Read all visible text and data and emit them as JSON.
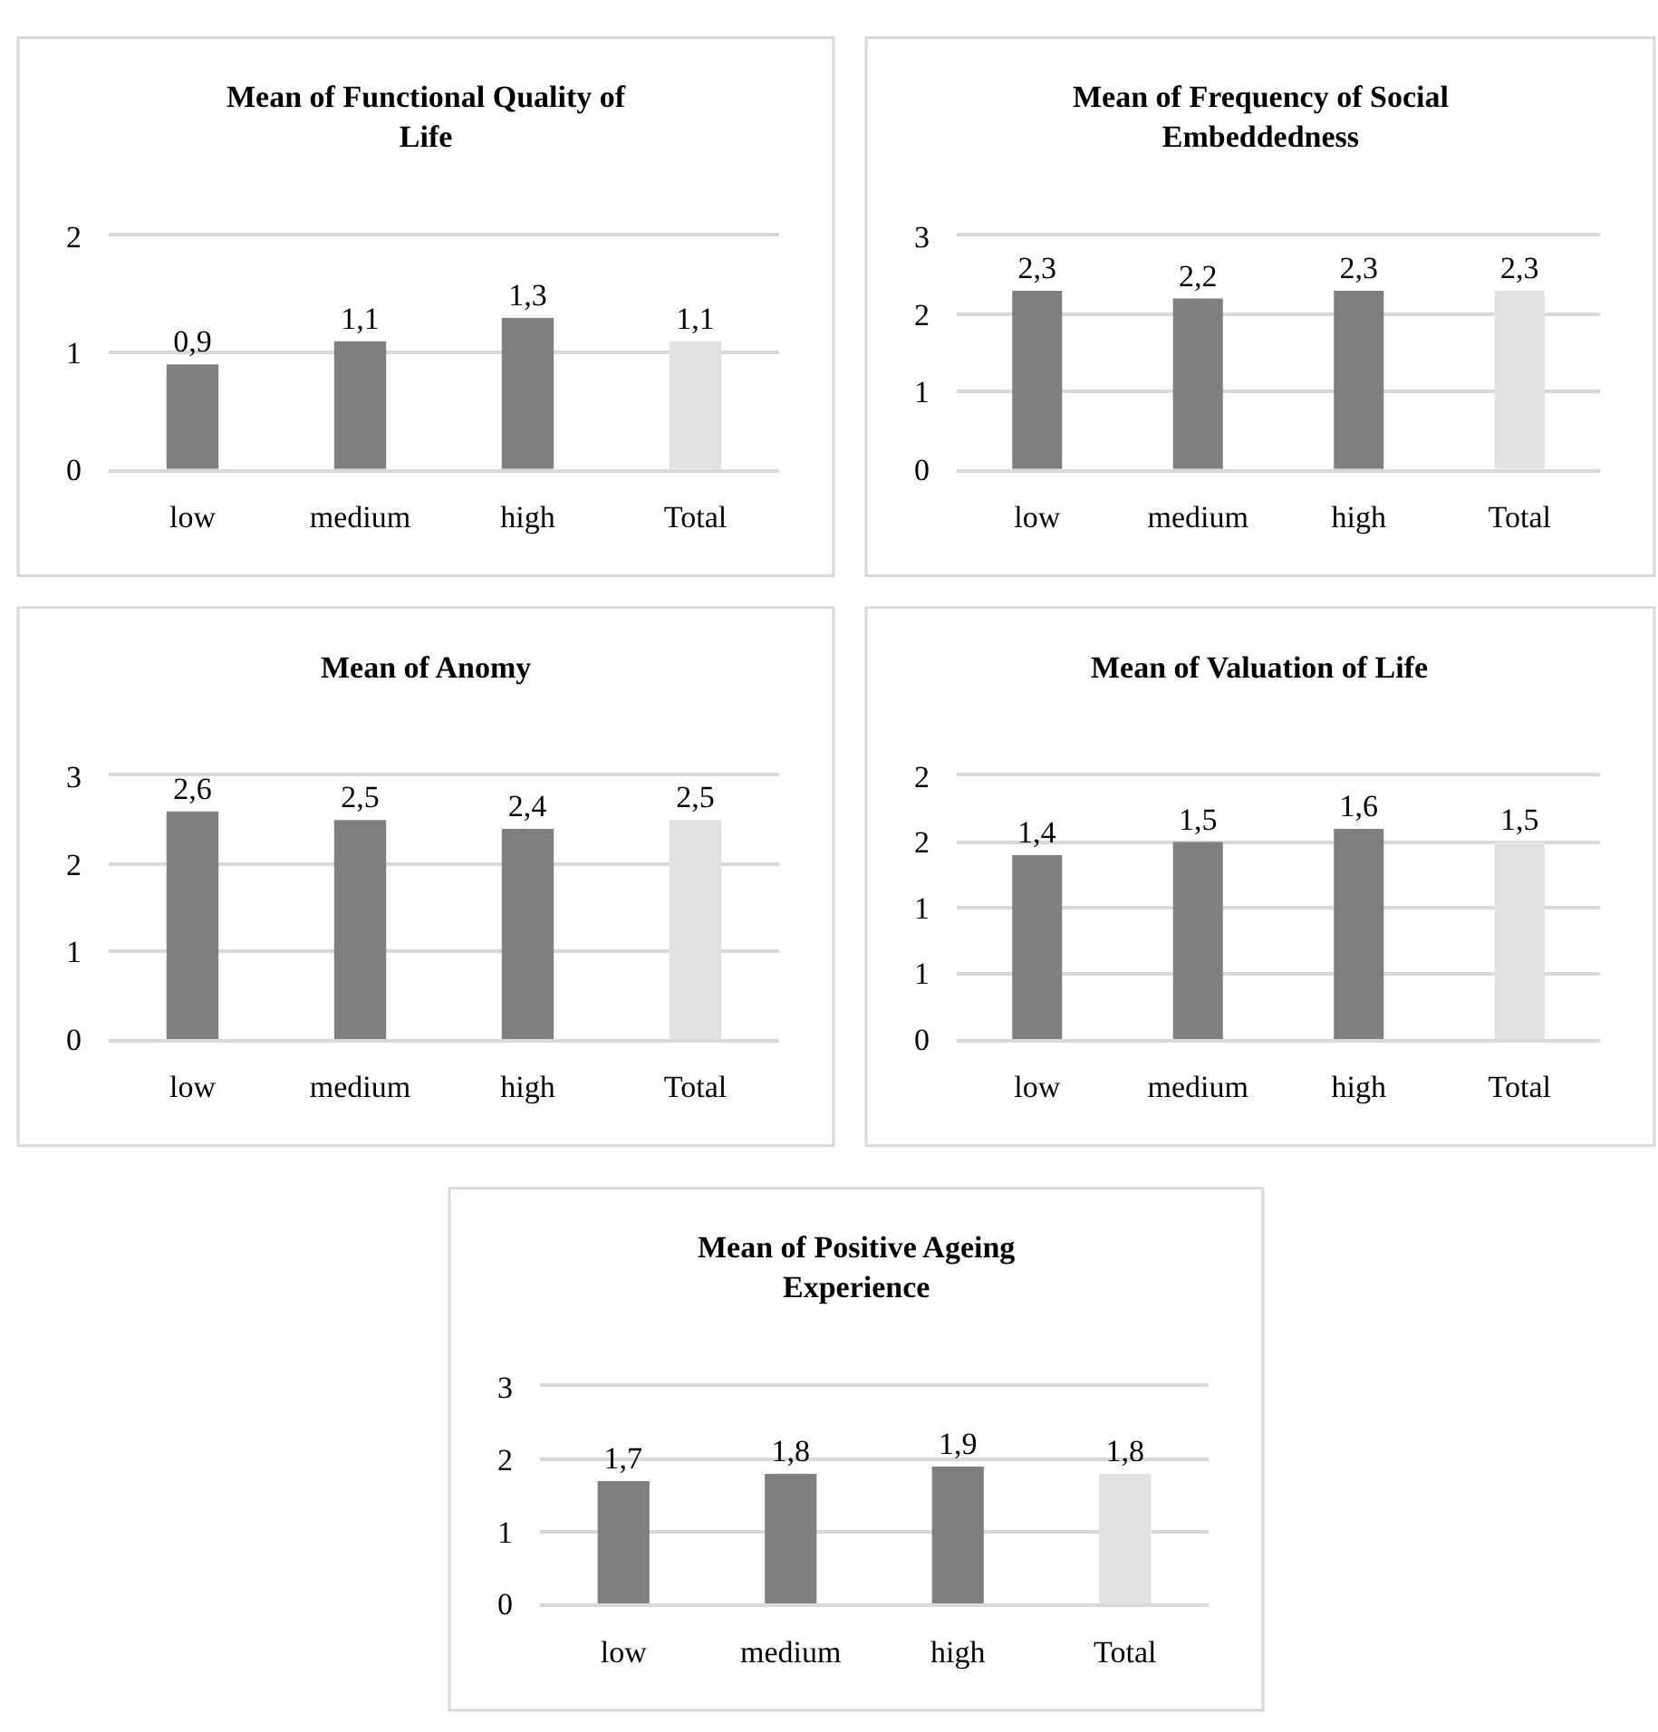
{
  "chart_data": [
    {
      "type": "bar",
      "title": "Mean of Functional Quality of Life",
      "categories": [
        "low",
        "medium",
        "high",
        "Total"
      ],
      "values": [
        0.9,
        1.1,
        1.3,
        1.1
      ],
      "value_labels": [
        "0,9",
        "1,1",
        "1,3",
        "1,1"
      ],
      "colors": [
        "#7f7f7f",
        "#7f7f7f",
        "#7f7f7f",
        "#e1e1e1"
      ],
      "ylim": [
        0,
        2
      ],
      "yticks": [
        0,
        1,
        2
      ],
      "grid": "y"
    },
    {
      "type": "bar",
      "title": "Mean of Frequency of Social Embeddedness",
      "categories": [
        "low",
        "medium",
        "high",
        "Total"
      ],
      "values": [
        2.3,
        2.2,
        2.3,
        2.3
      ],
      "value_labels": [
        "2,3",
        "2,2",
        "2,3",
        "2,3"
      ],
      "colors": [
        "#7f7f7f",
        "#7f7f7f",
        "#7f7f7f",
        "#e1e1e1"
      ],
      "ylim": [
        0,
        3
      ],
      "yticks": [
        0,
        1,
        2,
        3
      ],
      "grid": "y"
    },
    {
      "type": "bar",
      "title": "Mean of Anomy",
      "categories": [
        "low",
        "medium",
        "high",
        "Total"
      ],
      "values": [
        2.6,
        2.5,
        2.4,
        2.5
      ],
      "value_labels": [
        "2,6",
        "2,5",
        "2,4",
        "2,5"
      ],
      "colors": [
        "#7f7f7f",
        "#7f7f7f",
        "#7f7f7f",
        "#e1e1e1"
      ],
      "ylim": [
        0,
        3
      ],
      "yticks": [
        0,
        1,
        2,
        3
      ],
      "grid": "y"
    },
    {
      "type": "bar",
      "title": "Mean of Valuation of Life",
      "categories": [
        "low",
        "medium",
        "high",
        "Total"
      ],
      "values": [
        1.4,
        1.5,
        1.6,
        1.5
      ],
      "value_labels": [
        "1,4",
        "1,5",
        "1,6",
        "1,5"
      ],
      "colors": [
        "#7f7f7f",
        "#7f7f7f",
        "#7f7f7f",
        "#e1e1e1"
      ],
      "ylim": [
        0,
        2
      ],
      "yticks": [
        0,
        {
          "value": 0.5,
          "label": "1"
        },
        1,
        {
          "value": 1.5,
          "label": "2"
        },
        2
      ],
      "grid": "y"
    },
    {
      "type": "bar",
      "title": "Mean of Positive Ageing Experience",
      "categories": [
        "low",
        "medium",
        "high",
        "Total"
      ],
      "values": [
        1.7,
        1.8,
        1.9,
        1.8
      ],
      "value_labels": [
        "1,7",
        "1,8",
        "1,9",
        "1,8"
      ],
      "colors": [
        "#7f7f7f",
        "#7f7f7f",
        "#7f7f7f",
        "#e1e1e1"
      ],
      "ylim": [
        0,
        3
      ],
      "yticks": [
        0,
        1,
        2,
        3
      ],
      "grid": "y"
    }
  ]
}
